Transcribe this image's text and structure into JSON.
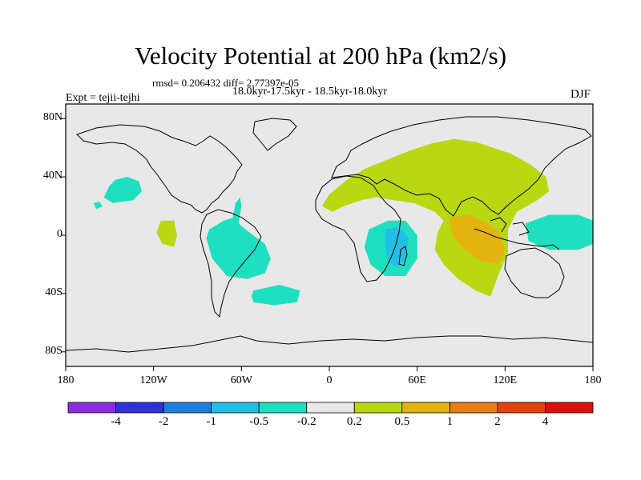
{
  "title": "Velocity Potential at 200 hPa (km2/s)",
  "stats": "rmsd= 0.206432 diff= 2.77397e-05",
  "time_range": "18.0kyr-17.5kyr - 18.5kyr-18.0kyr",
  "experiment": "Expt = tejii-tejhi",
  "season": "DJF",
  "chart_data": {
    "type": "heatmap",
    "projection": "cylindrical-equidistant",
    "lon_range": [
      -180,
      180
    ],
    "lat_range": [
      -90,
      90
    ],
    "x_ticks": [
      {
        "lon": -180,
        "label": "180"
      },
      {
        "lon": -120,
        "label": "120W"
      },
      {
        "lon": -60,
        "label": "60W"
      },
      {
        "lon": 0,
        "label": "0"
      },
      {
        "lon": 60,
        "label": "60E"
      },
      {
        "lon": 120,
        "label": "120E"
      },
      {
        "lon": 180,
        "label": "180"
      }
    ],
    "y_ticks": [
      {
        "lat": 80,
        "label": "80N"
      },
      {
        "lat": 40,
        "label": "40N"
      },
      {
        "lat": 0,
        "label": "0"
      },
      {
        "lat": -40,
        "label": "40S"
      },
      {
        "lat": -80,
        "label": "80S"
      }
    ],
    "colorbar": {
      "colors": [
        "#8a2be2",
        "#3030d8",
        "#1e7fe0",
        "#20bfe6",
        "#1ee0c0",
        "#e8e8e8",
        "#b9d811",
        "#e3b40f",
        "#ea7d16",
        "#e4420e",
        "#e00d0d"
      ],
      "labels": [
        "-4",
        "-2",
        "-1",
        "-0.5",
        "-0.2",
        "0.2",
        "0.5",
        "1",
        "2",
        "4"
      ]
    },
    "regions": [
      {
        "name": "north-pacific-negative",
        "level": "-0.5 to -0.2",
        "points": [
          [
            -146,
            38
          ],
          [
            -138,
            40
          ],
          [
            -130,
            37
          ],
          [
            -128,
            30
          ],
          [
            -134,
            24
          ],
          [
            -148,
            22
          ],
          [
            -154,
            26
          ],
          [
            -150,
            34
          ]
        ]
      },
      {
        "name": "hawaii-negative-spot",
        "level": "-0.5 to -0.2",
        "points": [
          [
            -161,
            22
          ],
          [
            -157,
            23
          ],
          [
            -155,
            20
          ],
          [
            -159,
            18
          ]
        ]
      },
      {
        "name": "south-america-negative",
        "level": "-0.5 to -0.2",
        "points": [
          [
            -82,
            4
          ],
          [
            -72,
            10
          ],
          [
            -66,
            12
          ],
          [
            -64,
            22
          ],
          [
            -61,
            26
          ],
          [
            -60,
            20
          ],
          [
            -62,
            8
          ],
          [
            -56,
            3
          ],
          [
            -44,
            -6
          ],
          [
            -40,
            -16
          ],
          [
            -44,
            -26
          ],
          [
            -56,
            -30
          ],
          [
            -70,
            -28
          ],
          [
            -80,
            -16
          ],
          [
            -84,
            -2
          ]
        ]
      },
      {
        "name": "south-atlantic-negative",
        "level": "-0.5 to -0.2",
        "points": [
          [
            -52,
            -38
          ],
          [
            -34,
            -34
          ],
          [
            -20,
            -38
          ],
          [
            -22,
            -46
          ],
          [
            -38,
            -48
          ],
          [
            -52,
            -46
          ],
          [
            -53,
            -42
          ]
        ]
      },
      {
        "name": "east-pacific-positive",
        "level": "0.2 to 0.5",
        "points": [
          [
            -115,
            10
          ],
          [
            -106,
            10
          ],
          [
            -104,
            0
          ],
          [
            -106,
            -8
          ],
          [
            -114,
            -6
          ],
          [
            -118,
            2
          ]
        ]
      },
      {
        "name": "eurasia-positive",
        "level": "0.2 to 0.5",
        "points": [
          [
            -5,
            20
          ],
          [
            0,
            28
          ],
          [
            12,
            38
          ],
          [
            25,
            46
          ],
          [
            40,
            52
          ],
          [
            55,
            58
          ],
          [
            70,
            63
          ],
          [
            85,
            66
          ],
          [
            100,
            64
          ],
          [
            112,
            60
          ],
          [
            124,
            56
          ],
          [
            138,
            48
          ],
          [
            148,
            40
          ],
          [
            150,
            30
          ],
          [
            142,
            24
          ],
          [
            128,
            16
          ],
          [
            122,
            4
          ],
          [
            122,
            -12
          ],
          [
            116,
            -26
          ],
          [
            110,
            -42
          ],
          [
            100,
            -38
          ],
          [
            88,
            -30
          ],
          [
            78,
            -20
          ],
          [
            72,
            -10
          ],
          [
            74,
            2
          ],
          [
            78,
            10
          ],
          [
            72,
            16
          ],
          [
            58,
            22
          ],
          [
            44,
            24
          ],
          [
            32,
            26
          ],
          [
            22,
            24
          ],
          [
            10,
            20
          ],
          [
            2,
            16
          ]
        ]
      },
      {
        "name": "indonesia-positive-core",
        "level": "0.5 to 1",
        "points": [
          [
            82,
            12
          ],
          [
            96,
            14
          ],
          [
            108,
            8
          ],
          [
            116,
            2
          ],
          [
            120,
            -10
          ],
          [
            116,
            -20
          ],
          [
            104,
            -18
          ],
          [
            92,
            -10
          ],
          [
            84,
            0
          ]
        ]
      },
      {
        "name": "east-africa-negative",
        "level": "-0.5 to -0.2",
        "points": [
          [
            27,
            4
          ],
          [
            40,
            10
          ],
          [
            52,
            10
          ],
          [
            60,
            0
          ],
          [
            60,
            -16
          ],
          [
            52,
            -28
          ],
          [
            38,
            -28
          ],
          [
            28,
            -20
          ],
          [
            24,
            -8
          ]
        ]
      },
      {
        "name": "east-africa-negative-core",
        "level": "-1 to -0.5",
        "points": [
          [
            38,
            4
          ],
          [
            48,
            6
          ],
          [
            54,
            -2
          ],
          [
            52,
            -16
          ],
          [
            46,
            -22
          ],
          [
            40,
            -18
          ],
          [
            38,
            -6
          ]
        ]
      },
      {
        "name": "west-pacific-negative",
        "level": "-0.5 to -0.2",
        "points": [
          [
            134,
            8
          ],
          [
            150,
            14
          ],
          [
            170,
            14
          ],
          [
            180,
            10
          ],
          [
            180,
            -6
          ],
          [
            170,
            -10
          ],
          [
            150,
            -10
          ],
          [
            136,
            -4
          ]
        ]
      }
    ]
  }
}
